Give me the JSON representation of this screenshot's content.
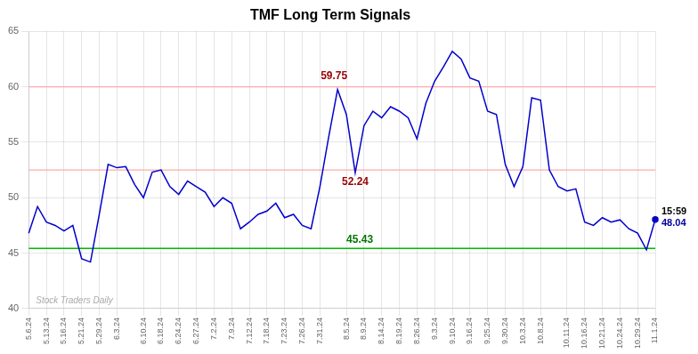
{
  "chart_data": {
    "type": "line",
    "title": "TMF Long Term Signals",
    "categories": [
      "5.6.24",
      null,
      "5.13.24",
      null,
      "5.16.24",
      null,
      "5.21.24",
      null,
      "5.29.24",
      null,
      "6.3.24",
      null,
      null,
      "6.10.24",
      null,
      "6.18.24",
      null,
      "6.24.24",
      null,
      "6.27.24",
      null,
      "7.2.24",
      null,
      "7.9.24",
      null,
      "7.12.24",
      null,
      "7.18.24",
      null,
      "7.23.24",
      null,
      "7.26.24",
      null,
      "7.31.24",
      null,
      null,
      "8.5.24",
      null,
      "8.9.24",
      null,
      "8.14.24",
      null,
      "8.19.24",
      null,
      "8.26.24",
      null,
      "9.3.24",
      null,
      "9.10.24",
      null,
      "9.16.24",
      null,
      "9.25.24",
      null,
      "9.30.24",
      null,
      "10.3.24",
      null,
      "10.8.24",
      null,
      null,
      "10.11.24",
      null,
      "10.16.24",
      null,
      "10.21.24",
      null,
      "10.24.24",
      null,
      "10.29.24",
      null,
      "11.1.24"
    ],
    "values": [
      46.8,
      49.2,
      47.8,
      47.5,
      47.0,
      47.5,
      44.5,
      44.2,
      48.5,
      53.0,
      52.7,
      52.8,
      51.2,
      50.0,
      52.3,
      52.5,
      51.0,
      50.3,
      51.5,
      51.0,
      50.5,
      49.2,
      50.0,
      49.5,
      47.2,
      47.8,
      48.5,
      48.8,
      49.5,
      48.2,
      48.5,
      47.5,
      47.2,
      51.0,
      55.5,
      59.75,
      57.5,
      52.24,
      56.5,
      57.8,
      57.2,
      58.2,
      57.8,
      57.2,
      55.3,
      58.5,
      60.5,
      61.8,
      63.2,
      62.5,
      60.8,
      60.5,
      57.8,
      57.5,
      53.0,
      51.0,
      52.8,
      59.0,
      58.8,
      52.5,
      51.0,
      50.6,
      50.8,
      47.8,
      47.5,
      48.2,
      47.8,
      48.0,
      47.2,
      46.8,
      45.3,
      48.04
    ],
    "color": "#0000cc",
    "ylim": [
      40,
      65
    ],
    "yticks": [
      40,
      45,
      50,
      55,
      60,
      65
    ],
    "grid": true,
    "hlines": [
      {
        "value": 60.0,
        "color": "#ffaaaa"
      },
      {
        "value": 52.5,
        "color": "#ffaaaa"
      },
      {
        "value": 45.43,
        "color": "#00bb00"
      }
    ],
    "annotations": [
      {
        "text": "59.75",
        "color": "#990000",
        "y": 59.75
      },
      {
        "text": "52.24",
        "color": "#990000",
        "y": 52.24
      },
      {
        "text": "45.43",
        "color": "#007700",
        "y": 45.43
      },
      {
        "text": "15:59",
        "color": "#000000"
      },
      {
        "text": "48.04",
        "color": "#000099",
        "y": 48.04
      },
      {
        "text": "Stock Traders Daily",
        "color": "#aaaaaa"
      }
    ]
  }
}
